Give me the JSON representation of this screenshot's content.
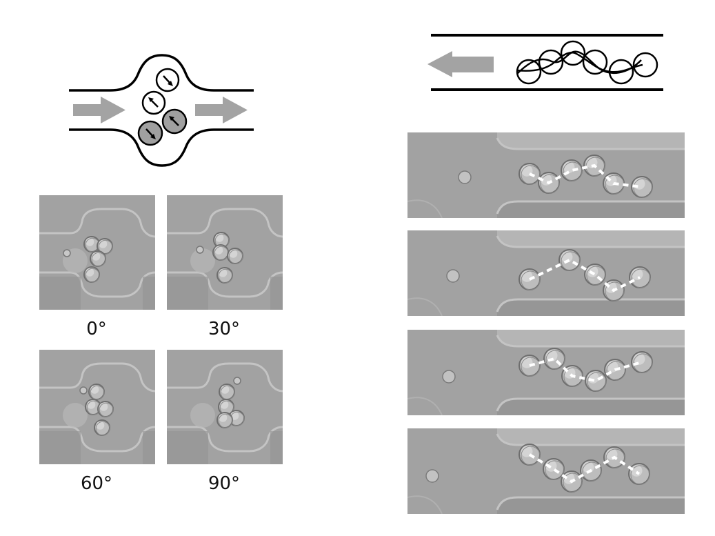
{
  "left_schematic": {
    "flow_arrow_color": "#a3a3a3",
    "particle_fill_light": "#ffffff",
    "particle_fill_dark": "#a0a0a0"
  },
  "rotation_panels": [
    {
      "label": "0°"
    },
    {
      "label": "30°"
    },
    {
      "label": "60°"
    },
    {
      "label": "90°"
    }
  ],
  "right_schematic": {
    "flow_arrow_color": "#a3a3a3"
  },
  "chain_panels_count": 4,
  "colors": {
    "micrograph_bg": "#a2a2a2",
    "channel_wall": "#c4c4c4",
    "dashed_trace": "#ffffff"
  }
}
